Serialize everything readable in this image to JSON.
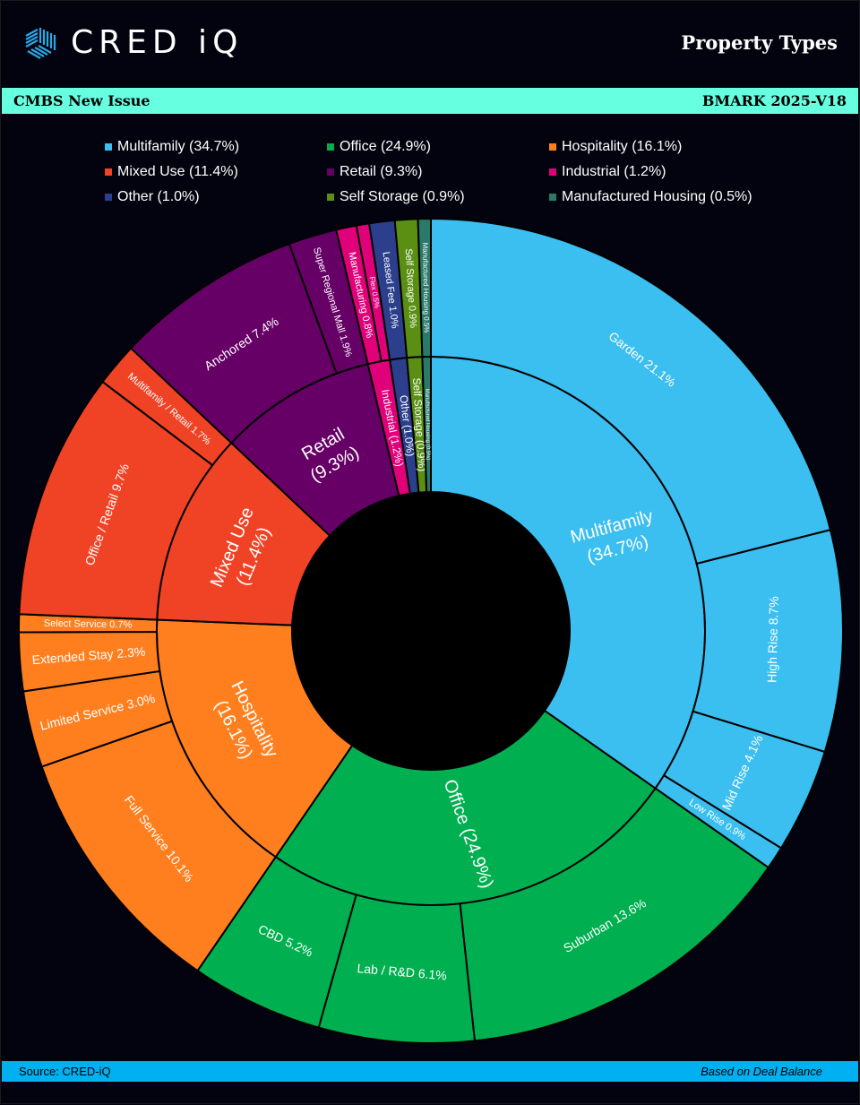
{
  "header": {
    "brand": "CRED iQ",
    "title": "Property Types",
    "band_left": "CMBS New Issue",
    "band_right": "BMARK 2025-V18"
  },
  "footer": {
    "source": "Source:  CRED-iQ",
    "basis": "Based on Deal Balance"
  },
  "chart_data": {
    "type": "sunburst",
    "title": "Property Types",
    "unit": "% of deal balance",
    "legend_position": "top",
    "legend": [
      {
        "label": "Multifamily (34.7%)",
        "color": "#3bbff0"
      },
      {
        "label": "Office (24.9%)",
        "color": "#00b050"
      },
      {
        "label": "Hospitality (16.1%)",
        "color": "#ff7f1f"
      },
      {
        "label": "Mixed Use (11.4%)",
        "color": "#f04326"
      },
      {
        "label": "Retail (9.3%)",
        "color": "#660066"
      },
      {
        "label": "Industrial (1.2%)",
        "color": "#e0007a"
      },
      {
        "label": "Other (1.0%)",
        "color": "#2b3f8c"
      },
      {
        "label": "Self Storage (0.9%)",
        "color": "#5a8f14"
      },
      {
        "label": "Manufactured Housing (0.5%)",
        "color": "#2a7a6a"
      }
    ],
    "categories": [
      {
        "name": "Multifamily",
        "value": 34.7,
        "label": "Multifamily (34.7%)",
        "color": "#3bbff0",
        "children": [
          {
            "name": "Garden",
            "value": 21.1,
            "label": "Garden 21.1%"
          },
          {
            "name": "High Rise",
            "value": 8.7,
            "label": "High Rise 8.7%"
          },
          {
            "name": "Mid Rise",
            "value": 4.1,
            "label": "Mid Rise 4.1%"
          },
          {
            "name": "Low Rise",
            "value": 0.9,
            "label": "Low Rise 0.9%"
          }
        ]
      },
      {
        "name": "Office",
        "value": 24.9,
        "label": "Office (24.9%)",
        "color": "#00b050",
        "children": [
          {
            "name": "Suburban",
            "value": 13.6,
            "label": "Suburban 13.6%"
          },
          {
            "name": "Lab / R&D",
            "value": 6.1,
            "label": "Lab / R&D 6.1%"
          },
          {
            "name": "CBD",
            "value": 5.2,
            "label": "CBD 5.2%"
          }
        ]
      },
      {
        "name": "Hospitality",
        "value": 16.1,
        "label": "Hospitality (16.1%)",
        "color": "#ff7f1f",
        "children": [
          {
            "name": "Full Service",
            "value": 10.1,
            "label": "Full Service 10.1%"
          },
          {
            "name": "Limited Service",
            "value": 3.0,
            "label": "Limited Service 3.0%"
          },
          {
            "name": "Extended Stay",
            "value": 2.3,
            "label": "Extended Stay 2.3%"
          },
          {
            "name": "Select Service",
            "value": 0.7,
            "label": "Select Service 0.7%"
          }
        ]
      },
      {
        "name": "Mixed Use",
        "value": 11.4,
        "label": "Mixed Use (11.4%)",
        "color": "#f04326",
        "children": [
          {
            "name": "Office / Retail",
            "value": 9.7,
            "label": "Office / Retail 9.7%"
          },
          {
            "name": "Multifamily / Retail",
            "value": 1.7,
            "label": "Multifamily / Retail 1.7%"
          }
        ]
      },
      {
        "name": "Retail",
        "value": 9.3,
        "label": "Retail (9.3%)",
        "color": "#660066",
        "children": [
          {
            "name": "Anchored",
            "value": 7.4,
            "label": "Anchored 7.4%"
          },
          {
            "name": "Super Regional Mall",
            "value": 1.9,
            "label": "Super Regional Mall 1.9%"
          }
        ]
      },
      {
        "name": "Industrial",
        "value": 1.2,
        "label": "Industrial (1.2%)",
        "color": "#e0007a",
        "children": [
          {
            "name": "Manufacturing",
            "value": 0.8,
            "label": "Manufacturing 0.8%"
          },
          {
            "name": "Flex",
            "value": 0.5,
            "label": "Flex 0.5%"
          }
        ]
      },
      {
        "name": "Other",
        "value": 1.0,
        "label": "Other (1.0%)",
        "color": "#2b3f8c",
        "children": [
          {
            "name": "Leased Fee",
            "value": 1.0,
            "label": "Leased Fee 1.0%"
          }
        ]
      },
      {
        "name": "Self Storage",
        "value": 0.9,
        "label": "Self Storage (0.9%)",
        "color": "#5a8f14",
        "children": [
          {
            "name": "Self Storage",
            "value": 0.9,
            "label": "Self Storage 0.9%"
          }
        ]
      },
      {
        "name": "Manufactured Housing",
        "value": 0.5,
        "label": "Manufactured Housing (0.5%)",
        "color": "#2a7a6a",
        "children": [
          {
            "name": "Manufactured Housing",
            "value": 0.5,
            "label": "Manufactured Housing 0.5%"
          }
        ]
      }
    ]
  }
}
